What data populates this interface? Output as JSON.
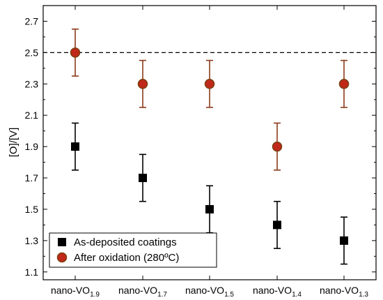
{
  "chart_data": {
    "type": "scatter",
    "title": "",
    "xlabel": "",
    "ylabel": "[O]/[V]",
    "ylim": [
      1.05,
      2.8
    ],
    "yticks": [
      1.1,
      1.3,
      1.5,
      1.7,
      1.9,
      2.1,
      2.3,
      2.5,
      2.7
    ],
    "ytick_labels": [
      "1.1",
      "1.3",
      "1.5",
      "1.7",
      "1.9",
      "2.1",
      "2.3",
      "2.5",
      "2.7"
    ],
    "categories": [
      {
        "base": "nano-VO",
        "sub": "1.9"
      },
      {
        "base": "nano-VO",
        "sub": "1.7"
      },
      {
        "base": "nano-VO",
        "sub": "1.5"
      },
      {
        "base": "nano-VO",
        "sub": "1.4"
      },
      {
        "base": "nano-VO",
        "sub": "1.3"
      }
    ],
    "reference_line": {
      "y": 2.5,
      "style": "dashed"
    },
    "series": [
      {
        "name": "As-deposited coatings",
        "marker": "square",
        "color": "#000000",
        "errorbar_color": "#000000",
        "values": [
          1.9,
          1.7,
          1.5,
          1.4,
          1.3
        ],
        "errors": [
          0.15,
          0.15,
          0.15,
          0.15,
          0.15
        ]
      },
      {
        "name": "After oxidation (280ºC)",
        "marker": "circle",
        "color": "#c0281a",
        "edge_color": "#7a3f10",
        "errorbar_color": "#8b3a1a",
        "values": [
          2.5,
          2.3,
          2.3,
          1.9,
          2.3
        ],
        "errors": [
          0.15,
          0.15,
          0.15,
          0.15,
          0.15
        ]
      }
    ],
    "legend": {
      "position": "bottom-left"
    },
    "grid": false
  }
}
